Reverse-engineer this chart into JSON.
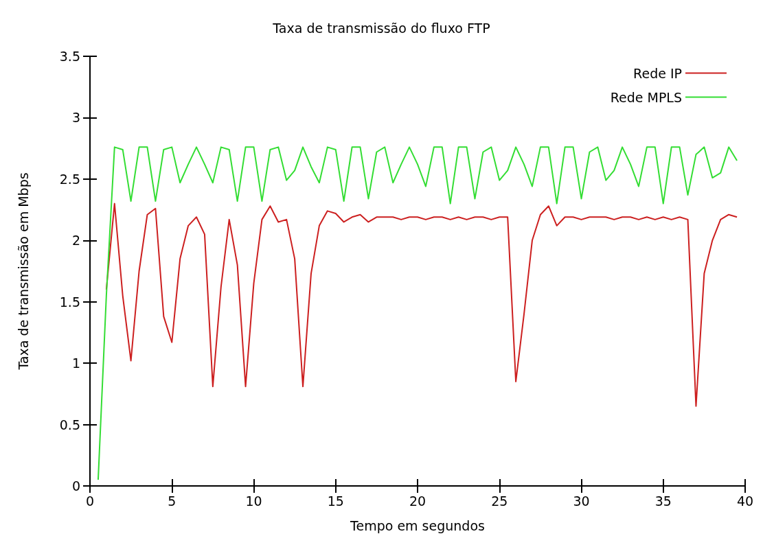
{
  "chart_data": {
    "type": "line",
    "title": "Taxa de transmissão do fluxo FTP",
    "xlabel": "Tempo em segundos",
    "ylabel": "Taxa de transmissão em Mbps",
    "x": [
      0.5,
      1,
      1.5,
      2,
      2.5,
      3,
      3.5,
      4,
      4.5,
      5,
      5.5,
      6,
      6.5,
      7,
      7.5,
      8,
      8.5,
      9,
      9.5,
      10,
      10.5,
      11,
      11.5,
      12,
      12.5,
      13,
      13.5,
      14,
      14.5,
      15,
      15.5,
      16,
      16.5,
      17,
      17.5,
      18,
      18.5,
      19,
      19.5,
      20,
      20.5,
      21,
      21.5,
      22,
      22.5,
      23,
      23.5,
      24,
      24.5,
      25,
      25.5,
      26,
      26.5,
      27,
      27.5,
      28,
      28.5,
      29,
      29.5,
      30,
      30.5,
      31,
      31.5,
      32,
      32.5,
      33,
      33.5,
      34,
      34.5,
      35,
      35.5,
      36,
      36.5,
      37,
      37.5,
      38,
      38.5,
      39,
      39.5
    ],
    "series": [
      {
        "name": "Rede IP",
        "color": "#cc1f1f",
        "values": [
          null,
          1.6,
          2.3,
          1.55,
          1.02,
          1.75,
          2.21,
          2.26,
          1.38,
          1.17,
          1.85,
          2.12,
          2.19,
          2.05,
          0.81,
          1.62,
          2.17,
          1.8,
          0.81,
          1.65,
          2.17,
          2.28,
          2.15,
          2.17,
          1.85,
          0.81,
          1.73,
          2.12,
          2.24,
          2.22,
          2.15,
          2.19,
          2.21,
          2.15,
          2.19,
          2.19,
          2.19,
          2.17,
          2.19,
          2.19,
          2.17,
          2.19,
          2.19,
          2.17,
          2.19,
          2.17,
          2.19,
          2.19,
          2.17,
          2.19,
          2.19,
          0.85,
          1.4,
          2.0,
          2.21,
          2.28,
          2.12,
          2.19,
          2.19,
          2.17,
          2.19,
          2.19,
          2.19,
          2.17,
          2.19,
          2.19,
          2.17,
          2.19,
          2.17,
          2.19,
          2.17,
          2.19,
          2.17,
          0.65,
          1.73,
          2.0,
          2.17,
          2.21,
          2.19
        ]
      },
      {
        "name": "Rede MPLS",
        "color": "#33dd33",
        "values": [
          0.05,
          1.55,
          2.76,
          2.74,
          2.32,
          2.76,
          2.76,
          2.32,
          2.74,
          2.76,
          2.47,
          2.62,
          2.76,
          2.62,
          2.47,
          2.76,
          2.74,
          2.32,
          2.76,
          2.76,
          2.32,
          2.74,
          2.76,
          2.49,
          2.57,
          2.76,
          2.6,
          2.47,
          2.76,
          2.74,
          2.32,
          2.76,
          2.76,
          2.34,
          2.72,
          2.76,
          2.47,
          2.62,
          2.76,
          2.62,
          2.44,
          2.76,
          2.76,
          2.3,
          2.76,
          2.76,
          2.34,
          2.72,
          2.76,
          2.49,
          2.57,
          2.76,
          2.62,
          2.44,
          2.76,
          2.76,
          2.3,
          2.76,
          2.76,
          2.34,
          2.72,
          2.76,
          2.49,
          2.57,
          2.76,
          2.62,
          2.44,
          2.76,
          2.76,
          2.3,
          2.76,
          2.76,
          2.37,
          2.7,
          2.76,
          2.51,
          2.55,
          2.76,
          2.65
        ]
      }
    ],
    "xlim": [
      0,
      40
    ],
    "xticks": [
      0,
      5,
      10,
      15,
      20,
      25,
      30,
      35,
      40
    ],
    "ylim": [
      0,
      3.5
    ],
    "yticks": [
      0,
      0.5,
      1,
      1.5,
      2,
      2.5,
      3,
      3.5
    ],
    "legend": "top right",
    "grid": false,
    "marker": "none",
    "line_style": "solid"
  }
}
